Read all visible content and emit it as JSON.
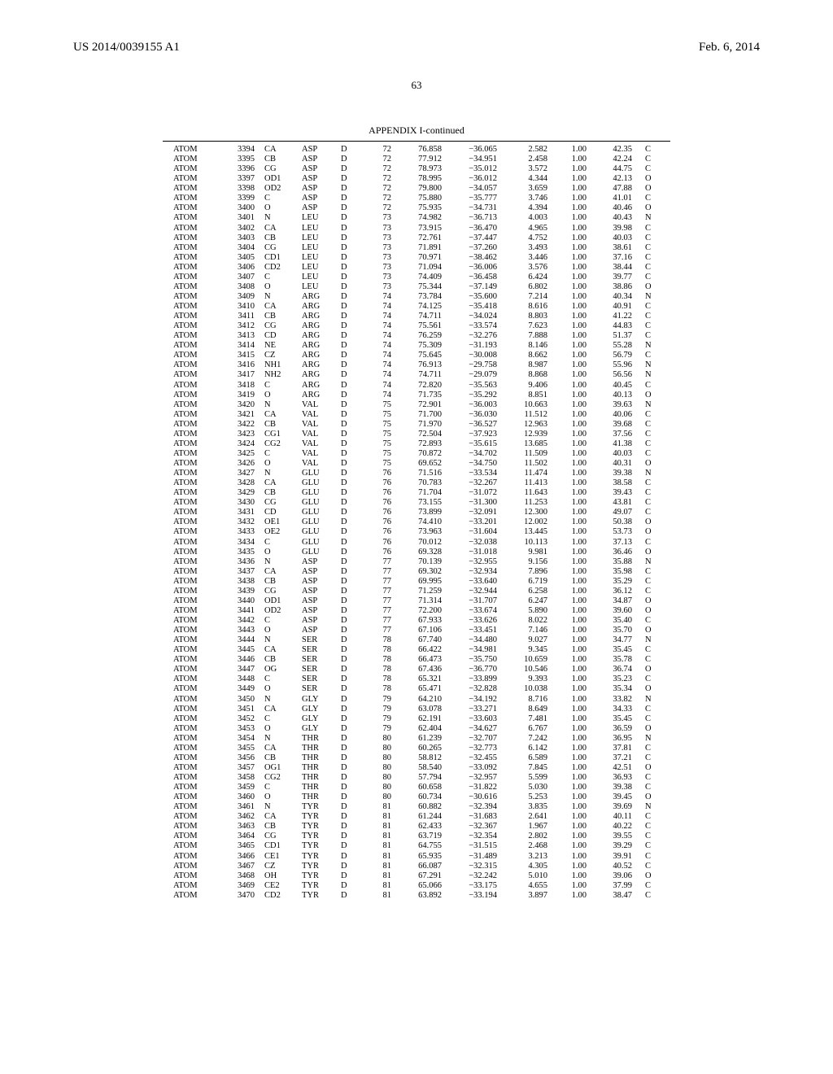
{
  "header": {
    "doc_id": "US 2014/0039155 A1",
    "date": "Feb. 6, 2014"
  },
  "page_number": "63",
  "appendix_title": "APPENDIX I-continued",
  "rows": [
    [
      "ATOM",
      "3394",
      "CA",
      "ASP",
      "D",
      "72",
      "76.858",
      "−36.065",
      "2.582",
      "1.00",
      "42.35",
      "C"
    ],
    [
      "ATOM",
      "3395",
      "CB",
      "ASP",
      "D",
      "72",
      "77.912",
      "−34.951",
      "2.458",
      "1.00",
      "42.24",
      "C"
    ],
    [
      "ATOM",
      "3396",
      "CG",
      "ASP",
      "D",
      "72",
      "78.973",
      "−35.012",
      "3.572",
      "1.00",
      "44.75",
      "C"
    ],
    [
      "ATOM",
      "3397",
      "OD1",
      "ASP",
      "D",
      "72",
      "78.995",
      "−36.012",
      "4.344",
      "1.00",
      "42.13",
      "O"
    ],
    [
      "ATOM",
      "3398",
      "OD2",
      "ASP",
      "D",
      "72",
      "79.800",
      "−34.057",
      "3.659",
      "1.00",
      "47.88",
      "O"
    ],
    [
      "ATOM",
      "3399",
      "C",
      "ASP",
      "D",
      "72",
      "75.880",
      "−35.777",
      "3.746",
      "1.00",
      "41.01",
      "C"
    ],
    [
      "ATOM",
      "3400",
      "O",
      "ASP",
      "D",
      "72",
      "75.935",
      "−34.731",
      "4.394",
      "1.00",
      "40.46",
      "O"
    ],
    [
      "ATOM",
      "3401",
      "N",
      "LEU",
      "D",
      "73",
      "74.982",
      "−36.713",
      "4.003",
      "1.00",
      "40.43",
      "N"
    ],
    [
      "ATOM",
      "3402",
      "CA",
      "LEU",
      "D",
      "73",
      "73.915",
      "−36.470",
      "4.965",
      "1.00",
      "39.98",
      "C"
    ],
    [
      "ATOM",
      "3403",
      "CB",
      "LEU",
      "D",
      "73",
      "72.761",
      "−37.447",
      "4.752",
      "1.00",
      "40.03",
      "C"
    ],
    [
      "ATOM",
      "3404",
      "CG",
      "LEU",
      "D",
      "73",
      "71.891",
      "−37.260",
      "3.493",
      "1.00",
      "38.61",
      "C"
    ],
    [
      "ATOM",
      "3405",
      "CD1",
      "LEU",
      "D",
      "73",
      "70.971",
      "−38.462",
      "3.446",
      "1.00",
      "37.16",
      "C"
    ],
    [
      "ATOM",
      "3406",
      "CD2",
      "LEU",
      "D",
      "73",
      "71.094",
      "−36.006",
      "3.576",
      "1.00",
      "38.44",
      "C"
    ],
    [
      "ATOM",
      "3407",
      "C",
      "LEU",
      "D",
      "73",
      "74.409",
      "−36.458",
      "6.424",
      "1.00",
      "39.77",
      "C"
    ],
    [
      "ATOM",
      "3408",
      "O",
      "LEU",
      "D",
      "73",
      "75.344",
      "−37.149",
      "6.802",
      "1.00",
      "38.86",
      "O"
    ],
    [
      "ATOM",
      "3409",
      "N",
      "ARG",
      "D",
      "74",
      "73.784",
      "−35.600",
      "7.214",
      "1.00",
      "40.34",
      "N"
    ],
    [
      "ATOM",
      "3410",
      "CA",
      "ARG",
      "D",
      "74",
      "74.125",
      "−35.418",
      "8.616",
      "1.00",
      "40.91",
      "C"
    ],
    [
      "ATOM",
      "3411",
      "CB",
      "ARG",
      "D",
      "74",
      "74.711",
      "−34.024",
      "8.803",
      "1.00",
      "41.22",
      "C"
    ],
    [
      "ATOM",
      "3412",
      "CG",
      "ARG",
      "D",
      "74",
      "75.561",
      "−33.574",
      "7.623",
      "1.00",
      "44.83",
      "C"
    ],
    [
      "ATOM",
      "3413",
      "CD",
      "ARG",
      "D",
      "74",
      "76.259",
      "−32.276",
      "7.888",
      "1.00",
      "51.37",
      "C"
    ],
    [
      "ATOM",
      "3414",
      "NE",
      "ARG",
      "D",
      "74",
      "75.309",
      "−31.193",
      "8.146",
      "1.00",
      "55.28",
      "N"
    ],
    [
      "ATOM",
      "3415",
      "CZ",
      "ARG",
      "D",
      "74",
      "75.645",
      "−30.008",
      "8.662",
      "1.00",
      "56.79",
      "C"
    ],
    [
      "ATOM",
      "3416",
      "NH1",
      "ARG",
      "D",
      "74",
      "76.913",
      "−29.758",
      "8.987",
      "1.00",
      "55.96",
      "N"
    ],
    [
      "ATOM",
      "3417",
      "NH2",
      "ARG",
      "D",
      "74",
      "74.711",
      "−29.079",
      "8.868",
      "1.00",
      "56.56",
      "N"
    ],
    [
      "ATOM",
      "3418",
      "C",
      "ARG",
      "D",
      "74",
      "72.820",
      "−35.563",
      "9.406",
      "1.00",
      "40.45",
      "C"
    ],
    [
      "ATOM",
      "3419",
      "O",
      "ARG",
      "D",
      "74",
      "71.735",
      "−35.292",
      "8.851",
      "1.00",
      "40.13",
      "O"
    ],
    [
      "ATOM",
      "3420",
      "N",
      "VAL",
      "D",
      "75",
      "72.901",
      "−36.003",
      "10.663",
      "1.00",
      "39.63",
      "N"
    ],
    [
      "ATOM",
      "3421",
      "CA",
      "VAL",
      "D",
      "75",
      "71.700",
      "−36.030",
      "11.512",
      "1.00",
      "40.06",
      "C"
    ],
    [
      "ATOM",
      "3422",
      "CB",
      "VAL",
      "D",
      "75",
      "71.970",
      "−36.527",
      "12.963",
      "1.00",
      "39.68",
      "C"
    ],
    [
      "ATOM",
      "3423",
      "CG1",
      "VAL",
      "D",
      "75",
      "72.504",
      "−37.923",
      "12.939",
      "1.00",
      "37.56",
      "C"
    ],
    [
      "ATOM",
      "3424",
      "CG2",
      "VAL",
      "D",
      "75",
      "72.893",
      "−35.615",
      "13.685",
      "1.00",
      "41.38",
      "C"
    ],
    [
      "ATOM",
      "3425",
      "C",
      "VAL",
      "D",
      "75",
      "70.872",
      "−34.702",
      "11.509",
      "1.00",
      "40.03",
      "C"
    ],
    [
      "ATOM",
      "3426",
      "O",
      "VAL",
      "D",
      "75",
      "69.652",
      "−34.750",
      "11.502",
      "1.00",
      "40.31",
      "O"
    ],
    [
      "ATOM",
      "3427",
      "N",
      "GLU",
      "D",
      "76",
      "71.516",
      "−33.534",
      "11.474",
      "1.00",
      "39.38",
      "N"
    ],
    [
      "ATOM",
      "3428",
      "CA",
      "GLU",
      "D",
      "76",
      "70.783",
      "−32.267",
      "11.413",
      "1.00",
      "38.58",
      "C"
    ],
    [
      "ATOM",
      "3429",
      "CB",
      "GLU",
      "D",
      "76",
      "71.704",
      "−31.072",
      "11.643",
      "1.00",
      "39.43",
      "C"
    ],
    [
      "ATOM",
      "3430",
      "CG",
      "GLU",
      "D",
      "76",
      "73.155",
      "−31.300",
      "11.253",
      "1.00",
      "43.81",
      "C"
    ],
    [
      "ATOM",
      "3431",
      "CD",
      "GLU",
      "D",
      "76",
      "73.899",
      "−32.091",
      "12.300",
      "1.00",
      "49.07",
      "C"
    ],
    [
      "ATOM",
      "3432",
      "OE1",
      "GLU",
      "D",
      "76",
      "74.410",
      "−33.201",
      "12.002",
      "1.00",
      "50.38",
      "O"
    ],
    [
      "ATOM",
      "3433",
      "OE2",
      "GLU",
      "D",
      "76",
      "73.963",
      "−31.604",
      "13.445",
      "1.00",
      "53.73",
      "O"
    ],
    [
      "ATOM",
      "3434",
      "C",
      "GLU",
      "D",
      "76",
      "70.012",
      "−32.038",
      "10.113",
      "1.00",
      "37.13",
      "C"
    ],
    [
      "ATOM",
      "3435",
      "O",
      "GLU",
      "D",
      "76",
      "69.328",
      "−31.018",
      "9.981",
      "1.00",
      "36.46",
      "O"
    ],
    [
      "ATOM",
      "3436",
      "N",
      "ASP",
      "D",
      "77",
      "70.139",
      "−32.955",
      "9.156",
      "1.00",
      "35.88",
      "N"
    ],
    [
      "ATOM",
      "3437",
      "CA",
      "ASP",
      "D",
      "77",
      "69.302",
      "−32.934",
      "7.896",
      "1.00",
      "35.98",
      "C"
    ],
    [
      "ATOM",
      "3438",
      "CB",
      "ASP",
      "D",
      "77",
      "69.995",
      "−33.640",
      "6.719",
      "1.00",
      "35.29",
      "C"
    ],
    [
      "ATOM",
      "3439",
      "CG",
      "ASP",
      "D",
      "77",
      "71.259",
      "−32.944",
      "6.258",
      "1.00",
      "36.12",
      "C"
    ],
    [
      "ATOM",
      "3440",
      "OD1",
      "ASP",
      "D",
      "77",
      "71.314",
      "−31.707",
      "6.247",
      "1.00",
      "34.87",
      "O"
    ],
    [
      "ATOM",
      "3441",
      "OD2",
      "ASP",
      "D",
      "77",
      "72.200",
      "−33.674",
      "5.890",
      "1.00",
      "39.60",
      "O"
    ],
    [
      "ATOM",
      "3442",
      "C",
      "ASP",
      "D",
      "77",
      "67.933",
      "−33.626",
      "8.022",
      "1.00",
      "35.40",
      "C"
    ],
    [
      "ATOM",
      "3443",
      "O",
      "ASP",
      "D",
      "77",
      "67.106",
      "−33.451",
      "7.146",
      "1.00",
      "35.70",
      "O"
    ],
    [
      "ATOM",
      "3444",
      "N",
      "SER",
      "D",
      "78",
      "67.740",
      "−34.480",
      "9.027",
      "1.00",
      "34.77",
      "N"
    ],
    [
      "ATOM",
      "3445",
      "CA",
      "SER",
      "D",
      "78",
      "66.422",
      "−34.981",
      "9.345",
      "1.00",
      "35.45",
      "C"
    ],
    [
      "ATOM",
      "3446",
      "CB",
      "SER",
      "D",
      "78",
      "66.473",
      "−35.750",
      "10.659",
      "1.00",
      "35.78",
      "C"
    ],
    [
      "ATOM",
      "3447",
      "OG",
      "SER",
      "D",
      "78",
      "67.436",
      "−36.770",
      "10.546",
      "1.00",
      "36.74",
      "O"
    ],
    [
      "ATOM",
      "3448",
      "C",
      "SER",
      "D",
      "78",
      "65.321",
      "−33.899",
      "9.393",
      "1.00",
      "35.23",
      "C"
    ],
    [
      "ATOM",
      "3449",
      "O",
      "SER",
      "D",
      "78",
      "65.471",
      "−32.828",
      "10.038",
      "1.00",
      "35.34",
      "O"
    ],
    [
      "ATOM",
      "3450",
      "N",
      "GLY",
      "D",
      "79",
      "64.210",
      "−34.192",
      "8.716",
      "1.00",
      "33.82",
      "N"
    ],
    [
      "ATOM",
      "3451",
      "CA",
      "GLY",
      "D",
      "79",
      "63.078",
      "−33.271",
      "8.649",
      "1.00",
      "34.33",
      "C"
    ],
    [
      "ATOM",
      "3452",
      "C",
      "GLY",
      "D",
      "79",
      "62.191",
      "−33.603",
      "7.481",
      "1.00",
      "35.45",
      "C"
    ],
    [
      "ATOM",
      "3453",
      "O",
      "GLY",
      "D",
      "79",
      "62.404",
      "−34.627",
      "6.767",
      "1.00",
      "36.59",
      "O"
    ],
    [
      "ATOM",
      "3454",
      "N",
      "THR",
      "D",
      "80",
      "61.239",
      "−32.707",
      "7.242",
      "1.00",
      "36.95",
      "N"
    ],
    [
      "ATOM",
      "3455",
      "CA",
      "THR",
      "D",
      "80",
      "60.265",
      "−32.773",
      "6.142",
      "1.00",
      "37.81",
      "C"
    ],
    [
      "ATOM",
      "3456",
      "CB",
      "THR",
      "D",
      "80",
      "58.812",
      "−32.455",
      "6.589",
      "1.00",
      "37.21",
      "C"
    ],
    [
      "ATOM",
      "3457",
      "OG1",
      "THR",
      "D",
      "80",
      "58.540",
      "−33.092",
      "7.845",
      "1.00",
      "42.51",
      "O"
    ],
    [
      "ATOM",
      "3458",
      "CG2",
      "THR",
      "D",
      "80",
      "57.794",
      "−32.957",
      "5.599",
      "1.00",
      "36.93",
      "C"
    ],
    [
      "ATOM",
      "3459",
      "C",
      "THR",
      "D",
      "80",
      "60.658",
      "−31.822",
      "5.030",
      "1.00",
      "39.38",
      "C"
    ],
    [
      "ATOM",
      "3460",
      "O",
      "THR",
      "D",
      "80",
      "60.734",
      "−30.616",
      "5.253",
      "1.00",
      "39.45",
      "O"
    ],
    [
      "ATOM",
      "3461",
      "N",
      "TYR",
      "D",
      "81",
      "60.882",
      "−32.394",
      "3.835",
      "1.00",
      "39.69",
      "N"
    ],
    [
      "ATOM",
      "3462",
      "CA",
      "TYR",
      "D",
      "81",
      "61.244",
      "−31.683",
      "2.641",
      "1.00",
      "40.11",
      "C"
    ],
    [
      "ATOM",
      "3463",
      "CB",
      "TYR",
      "D",
      "81",
      "62.433",
      "−32.367",
      "1.967",
      "1.00",
      "40.22",
      "C"
    ],
    [
      "ATOM",
      "3464",
      "CG",
      "TYR",
      "D",
      "81",
      "63.719",
      "−32.354",
      "2.802",
      "1.00",
      "39.55",
      "C"
    ],
    [
      "ATOM",
      "3465",
      "CD1",
      "TYR",
      "D",
      "81",
      "64.755",
      "−31.515",
      "2.468",
      "1.00",
      "39.29",
      "C"
    ],
    [
      "ATOM",
      "3466",
      "CE1",
      "TYR",
      "D",
      "81",
      "65.935",
      "−31.489",
      "3.213",
      "1.00",
      "39.91",
      "C"
    ],
    [
      "ATOM",
      "3467",
      "CZ",
      "TYR",
      "D",
      "81",
      "66.087",
      "−32.315",
      "4.305",
      "1.00",
      "40.52",
      "C"
    ],
    [
      "ATOM",
      "3468",
      "OH",
      "TYR",
      "D",
      "81",
      "67.291",
      "−32.242",
      "5.010",
      "1.00",
      "39.06",
      "O"
    ],
    [
      "ATOM",
      "3469",
      "CE2",
      "TYR",
      "D",
      "81",
      "65.066",
      "−33.175",
      "4.655",
      "1.00",
      "37.99",
      "C"
    ],
    [
      "ATOM",
      "3470",
      "CD2",
      "TYR",
      "D",
      "81",
      "63.892",
      "−33.194",
      "3.897",
      "1.00",
      "38.47",
      "C"
    ]
  ]
}
